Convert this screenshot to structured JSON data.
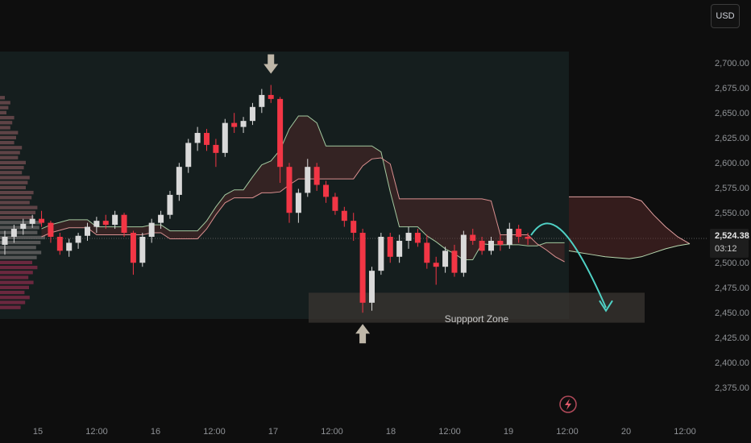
{
  "currency_button": "USD",
  "current_price": "2,524.38",
  "countdown": "03:12",
  "support_zone_label": "Suppport Zone",
  "colors": {
    "background": "#0e0e0e",
    "bull": "#d9d9d9",
    "bear": "#f23645",
    "cloud_bear": "#5a2a2a",
    "cloud_bull": "#1e3a28",
    "projection": "#4fd1c5"
  },
  "icons": [
    "arrow-down-marker-icon",
    "arrow-up-marker-icon",
    "projection-arrow-icon",
    "lightning-circle-icon"
  ],
  "chart_data": {
    "type": "candlestick",
    "x_ticks": [
      "15",
      "12:00",
      "16",
      "12:00",
      "17",
      "12:00",
      "18",
      "12:00",
      "19",
      "12:00",
      "20",
      "12:00"
    ],
    "y_ticks": [
      "2,700.00",
      "2,675.00",
      "2,650.00",
      "2,625.00",
      "2,600.00",
      "2,575.00",
      "2,550.00",
      "2,525.00",
      "2,500.00",
      "2,475.00",
      "2,450.00",
      "2,425.00",
      "2,400.00",
      "2,375.00"
    ],
    "ylim": [
      2366,
      2712
    ],
    "last_price": 2524.38,
    "ohlc": [
      [
        2518,
        2532,
        2508,
        2526
      ],
      [
        2526,
        2538,
        2520,
        2534
      ],
      [
        2534,
        2544,
        2528,
        2539
      ],
      [
        2539,
        2548,
        2535,
        2544
      ],
      [
        2544,
        2552,
        2536,
        2540
      ],
      [
        2540,
        2542,
        2520,
        2526
      ],
      [
        2526,
        2530,
        2508,
        2512
      ],
      [
        2512,
        2524,
        2506,
        2520
      ],
      [
        2520,
        2530,
        2514,
        2527
      ],
      [
        2527,
        2540,
        2522,
        2536
      ],
      [
        2536,
        2546,
        2530,
        2542
      ],
      [
        2542,
        2548,
        2534,
        2538
      ],
      [
        2538,
        2552,
        2534,
        2548
      ],
      [
        2548,
        2550,
        2526,
        2530
      ],
      [
        2530,
        2532,
        2488,
        2500
      ],
      [
        2500,
        2530,
        2496,
        2526
      ],
      [
        2526,
        2544,
        2520,
        2540
      ],
      [
        2540,
        2552,
        2534,
        2548
      ],
      [
        2548,
        2572,
        2544,
        2568
      ],
      [
        2568,
        2600,
        2562,
        2596
      ],
      [
        2596,
        2624,
        2590,
        2620
      ],
      [
        2620,
        2636,
        2612,
        2630
      ],
      [
        2630,
        2634,
        2612,
        2618
      ],
      [
        2618,
        2624,
        2596,
        2610
      ],
      [
        2610,
        2644,
        2606,
        2640
      ],
      [
        2640,
        2650,
        2630,
        2636
      ],
      [
        2636,
        2646,
        2630,
        2642
      ],
      [
        2642,
        2660,
        2638,
        2656
      ],
      [
        2656,
        2674,
        2650,
        2668
      ],
      [
        2668,
        2678,
        2660,
        2664
      ],
      [
        2664,
        2666,
        2580,
        2596
      ],
      [
        2596,
        2600,
        2540,
        2550
      ],
      [
        2550,
        2574,
        2540,
        2570
      ],
      [
        2570,
        2604,
        2566,
        2596
      ],
      [
        2596,
        2600,
        2572,
        2578
      ],
      [
        2578,
        2582,
        2560,
        2566
      ],
      [
        2566,
        2570,
        2548,
        2552
      ],
      [
        2552,
        2556,
        2536,
        2542
      ],
      [
        2542,
        2550,
        2522,
        2530
      ],
      [
        2530,
        2534,
        2450,
        2460
      ],
      [
        2460,
        2496,
        2452,
        2492
      ],
      [
        2492,
        2530,
        2488,
        2526
      ],
      [
        2526,
        2530,
        2500,
        2506
      ],
      [
        2506,
        2528,
        2500,
        2522
      ],
      [
        2522,
        2536,
        2514,
        2530
      ],
      [
        2530,
        2534,
        2516,
        2520
      ],
      [
        2520,
        2528,
        2494,
        2500
      ],
      [
        2500,
        2506,
        2478,
        2496
      ],
      [
        2496,
        2516,
        2490,
        2512
      ],
      [
        2512,
        2518,
        2486,
        2490
      ],
      [
        2490,
        2532,
        2486,
        2528
      ],
      [
        2528,
        2534,
        2518,
        2522
      ],
      [
        2522,
        2526,
        2508,
        2512
      ],
      [
        2512,
        2526,
        2508,
        2522
      ],
      [
        2522,
        2528,
        2512,
        2518
      ],
      [
        2518,
        2540,
        2514,
        2534
      ],
      [
        2534,
        2538,
        2520,
        2526
      ],
      [
        2526,
        2530,
        2518,
        2524
      ]
    ],
    "forecast": [
      {
        "name": "future_cloud_lower",
        "values": [
          2512,
          2510,
          2508,
          2506,
          2505,
          2504,
          2506,
          2510,
          2514,
          2517,
          2519
        ]
      },
      {
        "name": "future_cloud_upper",
        "values": [
          2566,
          2566,
          2566,
          2566,
          2566,
          2566,
          2562,
          2548,
          2536,
          2526,
          2519
        ]
      }
    ],
    "support_zone": [
      2440,
      2470
    ]
  }
}
